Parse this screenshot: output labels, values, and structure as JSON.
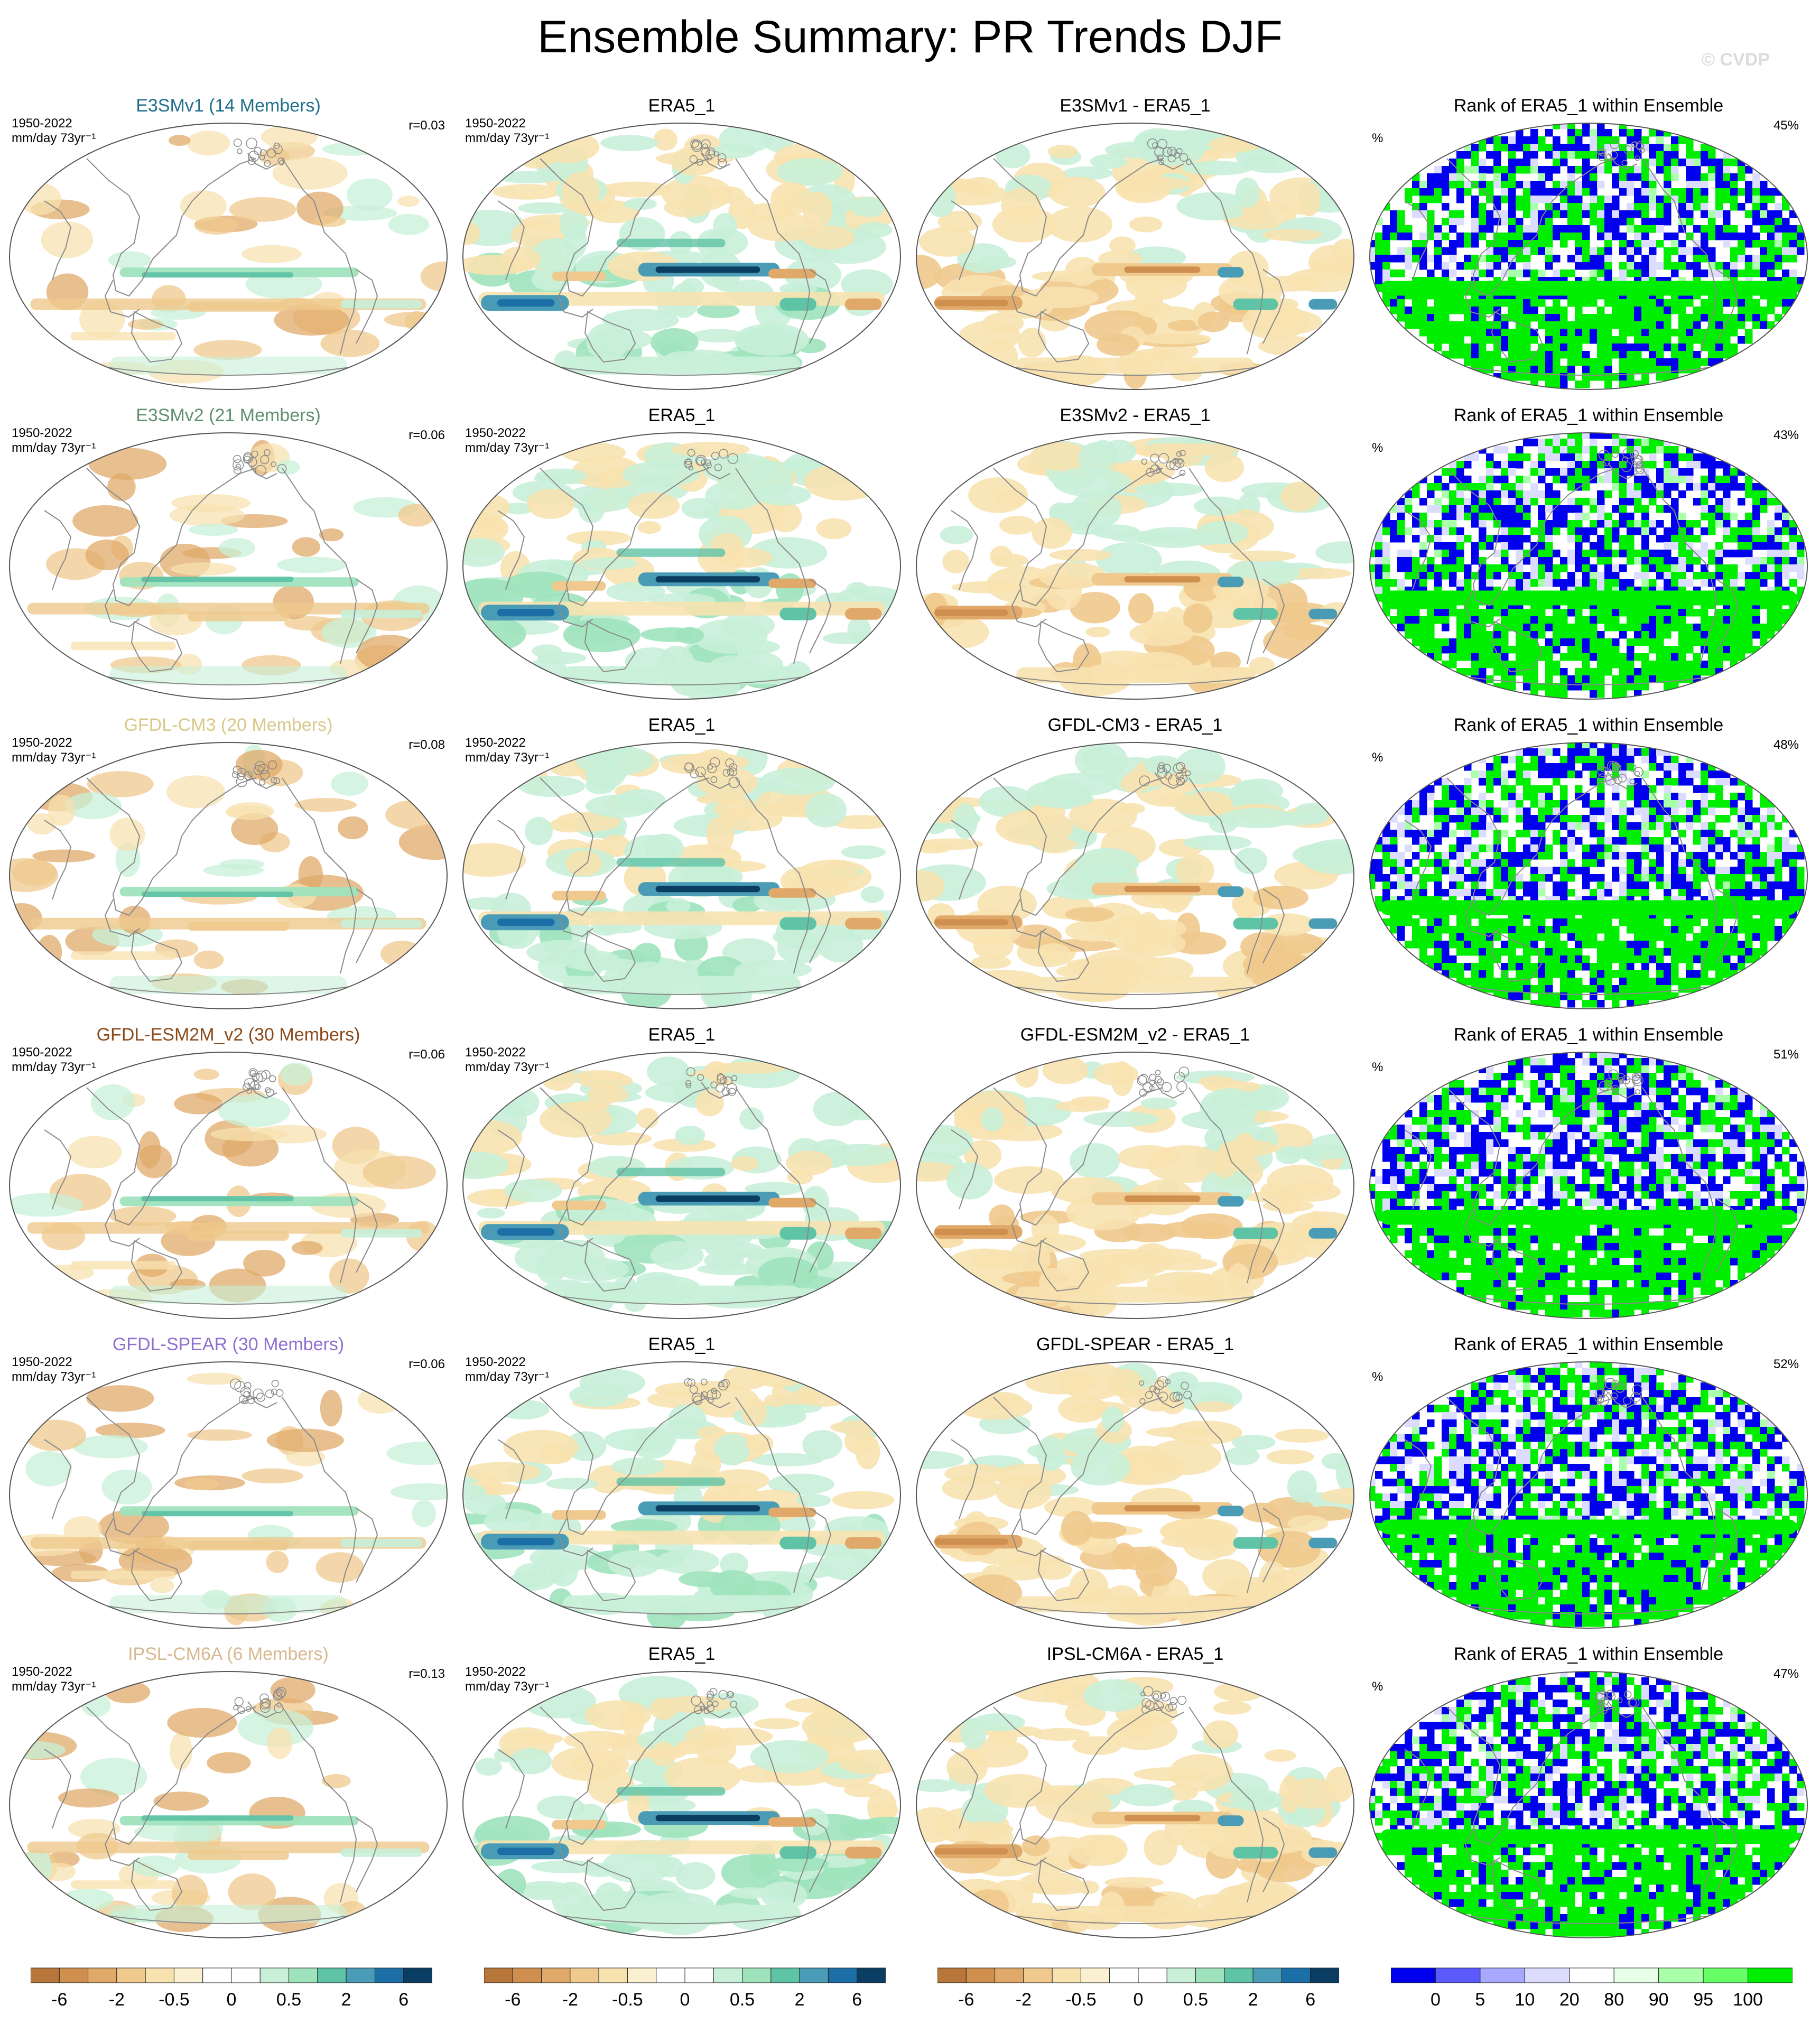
{
  "title": "Ensemble Summary: PR Trends DJF",
  "watermark": "© CVDP",
  "colors": {
    "brown_dark": "#b8773a",
    "brown": "#cf8f4f",
    "tan": "#e0a96a",
    "sand": "#efc98d",
    "cream": "#f7e2b0",
    "pale_cream": "#fbf0cf",
    "white": "#ffffff",
    "mint": "#c8f0d8",
    "lightgreen": "#9fe3bd",
    "teal": "#5fc3a6",
    "steel": "#4a9cb6",
    "blue": "#1b6ea6",
    "navy": "#0b3d62",
    "rank_blue": "#0000ee",
    "rank_green": "#00ee00",
    "coast": "#8a8a8a"
  },
  "chart_data": {
    "type": "heatmap",
    "projection": "robinson-like ellipse, Pacific-centred",
    "shared": {
      "period": "1950-2022",
      "units": "mm/day 73yr⁻¹",
      "obs": "ERA5_1",
      "rank_title": "Rank of ERA5_1 within Ensemble",
      "rank_units": "%"
    },
    "rows": [
      {
        "model": "E3SMv1 (14 Members)",
        "model_color": "#1f6f8b",
        "r": "r=0.03",
        "diff_title": "E3SMv1 - ERA5_1",
        "rank_value": "45%"
      },
      {
        "model": "E3SMv2 (21 Members)",
        "model_color": "#5f8f6f",
        "r": "r=0.06",
        "diff_title": "E3SMv2 - ERA5_1",
        "rank_value": "43%"
      },
      {
        "model": "GFDL-CM3 (20 Members)",
        "model_color": "#d8c88a",
        "r": "r=0.08",
        "diff_title": "GFDL-CM3 - ERA5_1",
        "rank_value": "48%"
      },
      {
        "model": "GFDL-ESM2M_v2 (30 Members)",
        "model_color": "#8b4a1a",
        "r": "r=0.06",
        "diff_title": "GFDL-ESM2M_v2 - ERA5_1",
        "rank_value": "51%"
      },
      {
        "model": "GFDL-SPEAR (30 Members)",
        "model_color": "#8f6fd0",
        "r": "r=0.06",
        "diff_title": "GFDL-SPEAR - ERA5_1",
        "rank_value": "52%"
      },
      {
        "model": "IPSL-CM6A (6 Members)",
        "model_color": "#d8b890",
        "r": "r=0.13",
        "diff_title": "IPSL-CM6A - ERA5_1",
        "rank_value": "47%"
      }
    ],
    "trend_colorbar": {
      "levels": [
        "-6",
        "-2",
        "-0.5",
        "0",
        "0.5",
        "2",
        "6"
      ],
      "colors": [
        "#b8773a",
        "#cf8f4f",
        "#e0a96a",
        "#efc98d",
        "#f7e2b0",
        "#fbf0cf",
        "#ffffff",
        "#ffffff",
        "#c8f0d8",
        "#9fe3bd",
        "#5fc3a6",
        "#4a9cb6",
        "#1b6ea6",
        "#0b3d62"
      ]
    },
    "rank_colorbar": {
      "levels": [
        "0",
        "5",
        "10",
        "20",
        "80",
        "90",
        "95",
        "100"
      ],
      "colors": [
        "#0000ee",
        "#5a5aff",
        "#a8a8ff",
        "#dcdcff",
        "#ffffff",
        "#e6ffe6",
        "#aaffaa",
        "#66ff66",
        "#00ee00"
      ]
    }
  }
}
